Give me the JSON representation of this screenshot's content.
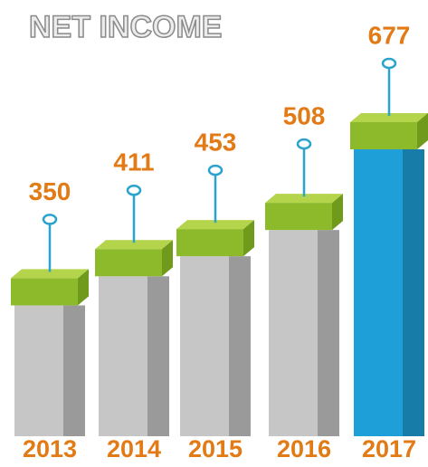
{
  "chart_data": {
    "type": "bar",
    "title": "NET INCOME",
    "categories": [
      "2013",
      "2014",
      "2015",
      "2016",
      "2017"
    ],
    "values": [
      350,
      411,
      453,
      508,
      677
    ],
    "colors": [
      "#c6c6c6",
      "#c6c6c6",
      "#c6c6c6",
      "#c6c6c6",
      "#1f9fd8"
    ]
  }
}
